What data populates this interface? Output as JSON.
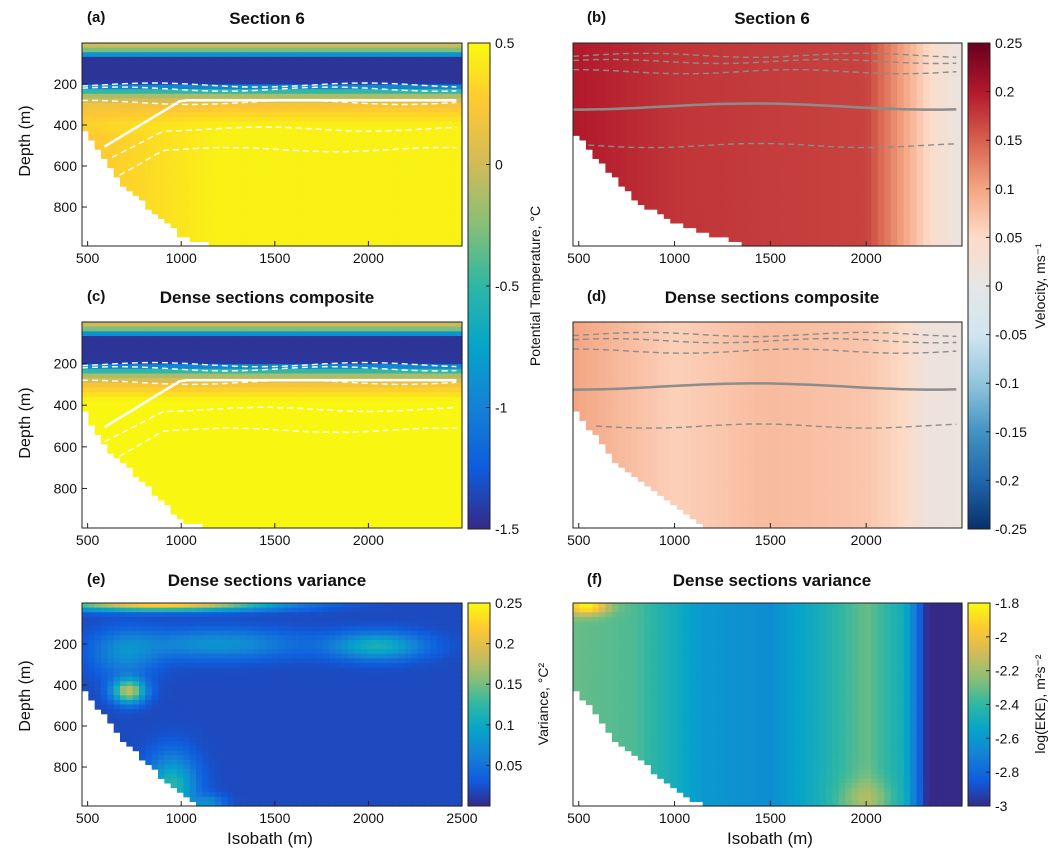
{
  "chart_data": [
    {
      "panel": "(a)",
      "title": "Section 6",
      "type": "heatmap",
      "xlabel": "",
      "ylabel": "Depth (m)",
      "xlim": [
        470,
        2500
      ],
      "ylim": [
        0,
        990
      ],
      "xticks": [
        500,
        1000,
        1500,
        2000
      ],
      "yticks": [
        200,
        400,
        600,
        800
      ],
      "bottom_profile": [
        [
          470,
          410
        ],
        [
          560,
          520
        ],
        [
          700,
          700
        ],
        [
          880,
          850
        ],
        [
          1000,
          940
        ],
        [
          1180,
          990
        ]
      ],
      "layers": [
        [
          0,
          0.1
        ],
        [
          45,
          -0.4
        ],
        [
          70,
          -1.45
        ],
        [
          190,
          -1.45
        ],
        [
          250,
          -0.2
        ],
        [
          300,
          0.2
        ],
        [
          400,
          0.45
        ],
        [
          990,
          0.45
        ]
      ],
      "contours": "white dashed isotherms; solid white 0 °C line"
    },
    {
      "panel": "(b)",
      "title": "Section 6",
      "type": "heatmap",
      "xlabel": "",
      "ylabel": "",
      "xlim": [
        470,
        2500
      ],
      "ylim": [
        0,
        990
      ],
      "xticks": [
        500,
        1000,
        1500,
        2000
      ],
      "yticks": [],
      "bottom_profile": [
        [
          470,
          430
        ],
        [
          800,
          770
        ],
        [
          1000,
          880
        ],
        [
          1400,
          990
        ]
      ],
      "velocity_by_x": [
        [
          470,
          0.2
        ],
        [
          1000,
          0.18
        ],
        [
          2000,
          0.17
        ],
        [
          2200,
          0.1
        ],
        [
          2350,
          0.04
        ],
        [
          2500,
          0.01
        ]
      ],
      "contours": "grey dashed isopycnals; solid grey line near 320 m"
    },
    {
      "panel": "(c)",
      "title": "Dense sections composite",
      "type": "heatmap",
      "xlabel": "",
      "ylabel": "Depth (m)",
      "xlim": [
        470,
        2500
      ],
      "ylim": [
        0,
        990
      ],
      "xticks": [
        500,
        1000,
        1500,
        2000
      ],
      "yticks": [
        200,
        400,
        600,
        800
      ],
      "bottom_profile": [
        [
          470,
          410
        ],
        [
          600,
          600
        ],
        [
          800,
          770
        ],
        [
          1000,
          950
        ],
        [
          1150,
          990
        ]
      ],
      "layers": [
        [
          0,
          0.1
        ],
        [
          45,
          -0.4
        ],
        [
          70,
          -1.45
        ],
        [
          190,
          -1.45
        ],
        [
          250,
          -0.2
        ],
        [
          300,
          0.2
        ],
        [
          380,
          0.48
        ],
        [
          990,
          0.48
        ]
      ],
      "contours": "white dashed isotherms; solid white 0 °C line"
    },
    {
      "panel": "(d)",
      "title": "Dense sections composite",
      "type": "heatmap",
      "xlabel": "",
      "ylabel": "",
      "xlim": [
        470,
        2500
      ],
      "ylim": [
        0,
        990
      ],
      "xticks": [
        500,
        1000,
        1500,
        2000
      ],
      "yticks": [],
      "bottom_profile": [
        [
          470,
          410
        ],
        [
          700,
          680
        ],
        [
          1000,
          880
        ],
        [
          1150,
          990
        ]
      ],
      "velocity_by_x": [
        [
          470,
          0.1
        ],
        [
          1000,
          0.06
        ],
        [
          1500,
          0.08
        ],
        [
          2000,
          0.07
        ],
        [
          2200,
          0.05
        ],
        [
          2300,
          0.02
        ],
        [
          2500,
          0.01
        ]
      ],
      "contours": "grey dashed isopycnals; solid grey line near 320 m"
    },
    {
      "panel": "(e)",
      "title": "Dense sections variance",
      "type": "heatmap",
      "xlabel": "Isobath (m)",
      "ylabel": "Depth (m)",
      "xlim": [
        470,
        2500
      ],
      "ylim": [
        0,
        990
      ],
      "xticks": [
        500,
        1000,
        1500,
        2000,
        2500
      ],
      "yticks": [
        200,
        400,
        600,
        800
      ],
      "bottom_profile": [
        [
          470,
          410
        ],
        [
          700,
          680
        ],
        [
          900,
          850
        ],
        [
          1100,
          990
        ]
      ],
      "background_variance": 0.02
    },
    {
      "panel": "(f)",
      "title": "Dense sections variance",
      "type": "heatmap",
      "xlabel": "Isobath (m)",
      "ylabel": "",
      "xlim": [
        470,
        2500
      ],
      "ylim": [
        0,
        990
      ],
      "xticks": [
        500,
        1000,
        1500,
        2000
      ],
      "yticks": [],
      "bottom_profile": [
        [
          470,
          400
        ],
        [
          700,
          680
        ],
        [
          1000,
          900
        ],
        [
          1150,
          990
        ]
      ],
      "log_eke_by_x": [
        [
          470,
          -2.3
        ],
        [
          800,
          -2.35
        ],
        [
          1150,
          -2.6
        ],
        [
          1500,
          -2.65
        ],
        [
          1800,
          -2.45
        ],
        [
          2000,
          -2.3
        ],
        [
          2200,
          -2.5
        ],
        [
          2320,
          -3.0
        ],
        [
          2500,
          -3.0
        ]
      ]
    }
  ],
  "colorbars": {
    "temperature": {
      "label": "Potential Temperature, °C",
      "range": [
        -1.5,
        0.5
      ],
      "ticks": [
        "0.5",
        "0",
        "-0.5",
        "-1",
        "-1.5"
      ]
    },
    "velocity": {
      "label": "Velocity, ms⁻¹",
      "range": [
        -0.25,
        0.25
      ],
      "ticks": [
        "0.25",
        "0.2",
        "0.15",
        "0.1",
        "0.05",
        "0",
        "-0.05",
        "-0.1",
        "-0.15",
        "-0.2",
        "-0.25"
      ]
    },
    "temp_variance": {
      "label": "Variance, °C²",
      "range": [
        0,
        0.25
      ],
      "ticks": [
        "0.25",
        "0.2",
        "0.15",
        "0.1",
        "0.05"
      ]
    },
    "log_eke": {
      "label": "log(EKE), m²s⁻²",
      "range": [
        -3,
        -1.8
      ],
      "ticks": [
        "-1.8",
        "-2",
        "-2.2",
        "-2.4",
        "-2.6",
        "-2.8",
        "-3"
      ]
    }
  },
  "colors": {
    "parula": [
      "#352a87",
      "#0f5cdd",
      "#1481d6",
      "#06a4ca",
      "#2eb7a4",
      "#87bf77",
      "#d1bb59",
      "#fec832",
      "#f9fb0e"
    ],
    "redblue": [
      "#08306b",
      "#2166ac",
      "#4393c3",
      "#92c5de",
      "#d1e5f0",
      "#e6e6e6",
      "#fddbc7",
      "#f4a582",
      "#d6604d",
      "#b2182b",
      "#67001f"
    ]
  }
}
